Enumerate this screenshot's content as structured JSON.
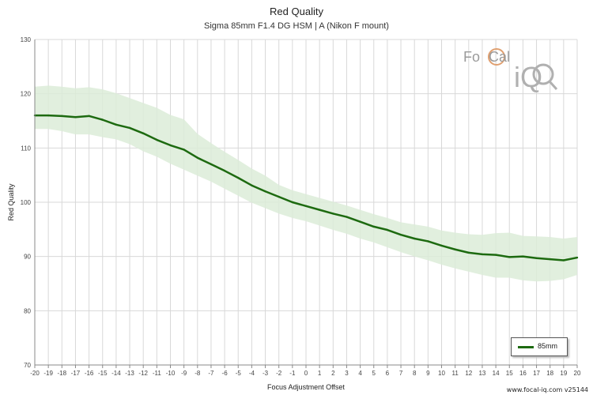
{
  "chart_data": {
    "type": "line",
    "title": "Red Quality",
    "subtitle": "Sigma 85mm F1.4 DG HSM | A (Nikon F mount)",
    "xlabel": "Focus Adjustment Offset",
    "ylabel": "Red Quality",
    "xlim": [
      -20,
      20
    ],
    "ylim": [
      70,
      130
    ],
    "yticks": [
      70,
      80,
      90,
      100,
      110,
      120,
      130
    ],
    "x": [
      -20,
      -19,
      -18,
      -17,
      -16,
      -15,
      -14,
      -13,
      -12,
      -11,
      -10,
      -9,
      -8,
      -7,
      -6,
      -5,
      -4,
      -3,
      -2,
      -1,
      0,
      1,
      2,
      3,
      4,
      5,
      6,
      7,
      8,
      9,
      10,
      11,
      12,
      13,
      14,
      15,
      16,
      17,
      18,
      19,
      20
    ],
    "series": [
      {
        "name": "85mm",
        "color": "#1d6a10",
        "band_color": "#dcecd8",
        "values": [
          116,
          116,
          115.9,
          115.7,
          115.9,
          115.2,
          114.3,
          113.7,
          112.7,
          111.5,
          110.5,
          109.7,
          108.2,
          107,
          105.8,
          104.5,
          103.1,
          102,
          101,
          100,
          99.3,
          98.6,
          97.9,
          97.3,
          96.4,
          95.5,
          94.9,
          94,
          93.3,
          92.8,
          92,
          91.3,
          90.7,
          90.4,
          90.3,
          89.9,
          90,
          89.7,
          89.5,
          89.3,
          89.8
        ],
        "upper": [
          121.3,
          121.5,
          121.3,
          121,
          121.2,
          120.8,
          120.1,
          119.2,
          118.3,
          117.4,
          116.1,
          115.3,
          112.6,
          110.9,
          109.3,
          107.8,
          106.2,
          104.9,
          103.2,
          102.2,
          101.5,
          100.8,
          100.1,
          99.4,
          98.6,
          97.8,
          97.1,
          96.3,
          95.9,
          95.5,
          94.8,
          94.4,
          94.1,
          94,
          94.3,
          94.4,
          93.8,
          93.7,
          93.6,
          93.3,
          93.6
        ],
        "lower": [
          113.5,
          113.5,
          113.1,
          112.5,
          112.5,
          112,
          111.6,
          110.7,
          109.4,
          108.4,
          107.1,
          106,
          104.9,
          103.8,
          102.5,
          101.2,
          99.9,
          98.9,
          97.9,
          97.1,
          96.5,
          95.7,
          94.9,
          94.2,
          93.3,
          92.6,
          91.7,
          90.8,
          90,
          89.3,
          88.5,
          87.8,
          87.2,
          86.6,
          86.1,
          86.1,
          85.6,
          85.4,
          85.5,
          85.8,
          86.6
        ]
      }
    ]
  },
  "logo": {
    "text_part1": "Fo",
    "text_part2": "Cal",
    "text_part3": "iQ"
  },
  "footer": "www.focal-iq.com  v25144"
}
